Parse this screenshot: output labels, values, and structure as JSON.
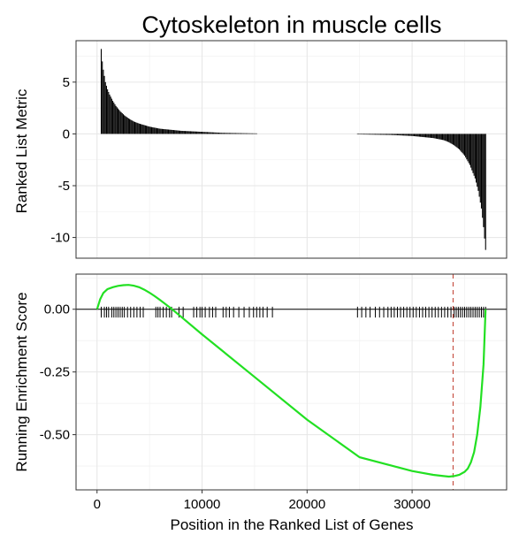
{
  "chart_data": [
    {
      "type": "bar",
      "title": "Cytoskeleton in muscle cells",
      "xlabel": "",
      "ylabel": "Ranked List Metric",
      "xlim": [
        -2000,
        39000
      ],
      "ylim": [
        -12,
        9
      ],
      "y_ticks": [
        5,
        0,
        -5,
        -10
      ],
      "y_tick_labels": [
        "5",
        "0",
        "-5",
        "-10"
      ],
      "grid": true,
      "bar_color": "#000000",
      "ranked_metric_profile": {
        "x": [
          400,
          500,
          600,
          700,
          800,
          1000,
          1200,
          1500,
          1800,
          2200,
          2600,
          3000,
          3500,
          4000,
          5000,
          6000,
          8000,
          10000,
          12000,
          15000,
          25000,
          28000,
          30000,
          31000,
          32000,
          33000,
          33500,
          34000,
          34500,
          35000,
          35500,
          36000,
          36300,
          36600,
          36800,
          37000
        ],
        "y": [
          8.2,
          7.0,
          6.2,
          5.6,
          5.0,
          4.3,
          3.8,
          3.2,
          2.7,
          2.2,
          1.8,
          1.5,
          1.2,
          1.0,
          0.7,
          0.5,
          0.3,
          0.2,
          0.1,
          0.05,
          -0.05,
          -0.1,
          -0.2,
          -0.3,
          -0.4,
          -0.6,
          -0.8,
          -1.1,
          -1.5,
          -2.1,
          -3.0,
          -4.3,
          -5.5,
          -7.2,
          -9.0,
          -11.2
        ]
      }
    },
    {
      "type": "line",
      "title": "",
      "xlabel": "Position in the Ranked List of Genes",
      "ylabel": "Running Enrichment Score",
      "xlim": [
        -2000,
        39000
      ],
      "ylim": [
        -0.72,
        0.14
      ],
      "x_ticks": [
        0,
        10000,
        20000,
        30000
      ],
      "x_tick_labels": [
        "0",
        "10000",
        "20000",
        "30000"
      ],
      "y_ticks": [
        0.0,
        -0.25,
        -0.5
      ],
      "y_tick_labels": [
        "0.00",
        "-0.25",
        "-0.50"
      ],
      "grid": true,
      "line_color": "#22e022",
      "dashed_line_color": "#c0392b",
      "dashed_line_x": 33900,
      "series": [
        {
          "x": [
            0,
            300,
            600,
            1000,
            1500,
            2000,
            2500,
            3000,
            3500,
            4000,
            4500,
            5000,
            5500,
            6000,
            7000,
            8000,
            10000,
            15000,
            20000,
            25000,
            30000,
            32000,
            33000,
            33500,
            34000,
            34500,
            35000,
            35300,
            35600,
            35900,
            36200,
            36500,
            36800,
            37000
          ],
          "y": [
            0.0,
            0.04,
            0.065,
            0.08,
            0.088,
            0.093,
            0.096,
            0.097,
            0.094,
            0.088,
            0.078,
            0.066,
            0.052,
            0.037,
            0.005,
            -0.03,
            -0.1,
            -0.27,
            -0.44,
            -0.59,
            -0.645,
            -0.66,
            -0.665,
            -0.667,
            -0.665,
            -0.66,
            -0.648,
            -0.635,
            -0.61,
            -0.57,
            -0.5,
            -0.39,
            -0.22,
            0.0
          ]
        }
      ],
      "gene_hits": [
        400,
        700,
        900,
        1100,
        1400,
        1600,
        1800,
        2000,
        2200,
        2400,
        2600,
        2900,
        3200,
        3500,
        3800,
        4100,
        4400,
        5600,
        5800,
        6000,
        6300,
        6600,
        6900,
        7100,
        7800,
        8200,
        9200,
        9500,
        9800,
        10000,
        10300,
        10700,
        11000,
        11300,
        12000,
        12300,
        12600,
        13000,
        13500,
        14000,
        14500,
        14900,
        15200,
        15500,
        15800,
        16200,
        16700,
        24800,
        25200,
        25600,
        26000,
        26500,
        26900,
        27300,
        27700,
        28000,
        28300,
        28600,
        28900,
        29200,
        29500,
        29800,
        30100,
        30400,
        30700,
        31000,
        31300,
        31600,
        31900,
        32200,
        32500,
        32800,
        33100,
        33400,
        33700,
        34000,
        34200,
        34400,
        34600,
        34800,
        35000,
        35200,
        35400,
        35600,
        35800,
        36000,
        36200,
        36400,
        36600,
        36800,
        37000
      ]
    }
  ]
}
